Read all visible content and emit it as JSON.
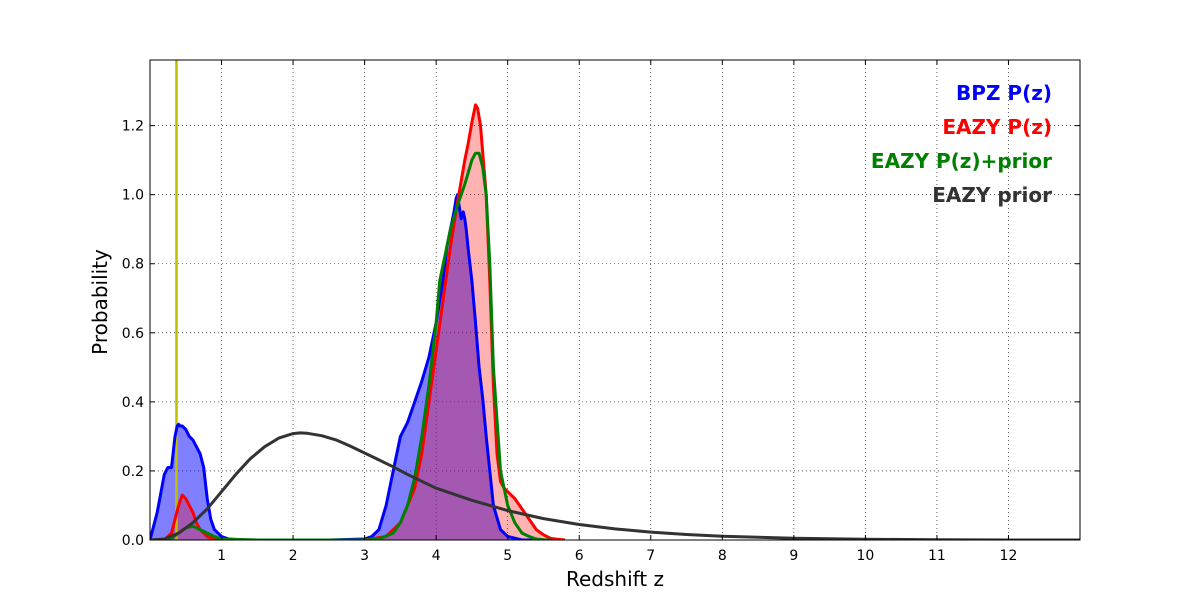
{
  "chart_data": {
    "type": "area",
    "title": "",
    "xlabel": "Redshift z",
    "ylabel": "Probability",
    "xlim": [
      0,
      13
    ],
    "ylim": [
      0,
      1.39
    ],
    "xticks": [
      1,
      2,
      3,
      4,
      5,
      6,
      7,
      8,
      9,
      10,
      11,
      12
    ],
    "yticks": [
      0.0,
      0.2,
      0.4,
      0.6,
      0.8,
      1.0,
      1.2
    ],
    "ytick_labels": [
      "0.0",
      "0.2",
      "0.4",
      "0.6",
      "0.8",
      "1.0",
      "1.2"
    ],
    "grid": true,
    "legend_position": "top-right",
    "vline": {
      "x": 0.37,
      "color": "#bfbf00"
    },
    "series": [
      {
        "name": "BPZ P(z)",
        "color": "#0000ff",
        "fill": "#0000ff",
        "fill_opacity": 0.5,
        "x": [
          0.0,
          0.1,
          0.2,
          0.25,
          0.3,
          0.35,
          0.38,
          0.4,
          0.42,
          0.45,
          0.5,
          0.55,
          0.6,
          0.65,
          0.7,
          0.75,
          0.8,
          0.85,
          0.9,
          1.0,
          1.1,
          1.3,
          1.5,
          2.0,
          2.5,
          3.0,
          3.1,
          3.2,
          3.3,
          3.4,
          3.5,
          3.6,
          3.7,
          3.8,
          3.9,
          4.0,
          4.1,
          4.15,
          4.2,
          4.25,
          4.28,
          4.3,
          4.32,
          4.35,
          4.38,
          4.4,
          4.42,
          4.45,
          4.5,
          4.55,
          4.6,
          4.65,
          4.7,
          4.75,
          4.8,
          4.9,
          5.0,
          5.2,
          5.5
        ],
        "values": [
          0.0,
          0.08,
          0.19,
          0.21,
          0.21,
          0.3,
          0.33,
          0.335,
          0.33,
          0.33,
          0.32,
          0.3,
          0.29,
          0.27,
          0.25,
          0.21,
          0.12,
          0.06,
          0.03,
          0.01,
          0.003,
          0.0,
          0.0,
          0.0,
          0.0,
          0.003,
          0.01,
          0.03,
          0.1,
          0.2,
          0.3,
          0.34,
          0.4,
          0.46,
          0.53,
          0.63,
          0.76,
          0.85,
          0.9,
          0.95,
          0.99,
          1.0,
          0.97,
          0.93,
          0.95,
          0.93,
          0.9,
          0.84,
          0.75,
          0.63,
          0.5,
          0.41,
          0.3,
          0.2,
          0.1,
          0.03,
          0.01,
          0.0,
          0.0
        ]
      },
      {
        "name": "EAZY P(z)",
        "color": "#ff0000",
        "fill": "#ff0000",
        "fill_opacity": 0.3,
        "x": [
          0.0,
          0.2,
          0.3,
          0.35,
          0.4,
          0.45,
          0.5,
          0.55,
          0.6,
          0.65,
          0.7,
          0.8,
          0.9,
          1.0,
          1.5,
          2.0,
          2.5,
          3.0,
          3.3,
          3.5,
          3.7,
          3.8,
          3.9,
          4.0,
          4.1,
          4.2,
          4.3,
          4.4,
          4.45,
          4.5,
          4.55,
          4.58,
          4.62,
          4.7,
          4.75,
          4.8,
          4.85,
          4.9,
          4.95,
          5.0,
          5.1,
          5.2,
          5.3,
          5.4,
          5.5,
          5.6,
          5.7,
          5.8
        ],
        "values": [
          0.0,
          0.0,
          0.02,
          0.06,
          0.1,
          0.13,
          0.12,
          0.1,
          0.08,
          0.05,
          0.03,
          0.01,
          0.002,
          0.0,
          0.0,
          0.0,
          0.0,
          0.0,
          0.01,
          0.05,
          0.15,
          0.25,
          0.4,
          0.55,
          0.7,
          0.85,
          0.98,
          1.1,
          1.15,
          1.21,
          1.26,
          1.25,
          1.2,
          1.0,
          0.75,
          0.45,
          0.25,
          0.17,
          0.15,
          0.14,
          0.12,
          0.09,
          0.06,
          0.03,
          0.015,
          0.005,
          0.002,
          0.0
        ]
      },
      {
        "name": "EAZY P(z)+prior",
        "color": "#008000",
        "fill": "none",
        "fill_opacity": 0,
        "x": [
          0.0,
          0.2,
          0.3,
          0.4,
          0.5,
          0.6,
          0.7,
          0.8,
          0.9,
          1.0,
          1.5,
          2.0,
          2.5,
          3.0,
          3.2,
          3.4,
          3.5,
          3.6,
          3.7,
          3.8,
          3.9,
          4.0,
          4.05,
          4.1,
          4.2,
          4.3,
          4.4,
          4.5,
          4.55,
          4.6,
          4.65,
          4.7,
          4.75,
          4.8,
          4.9,
          5.0,
          5.1,
          5.2,
          5.3,
          5.4,
          5.5,
          5.6
        ],
        "values": [
          0.0,
          0.0,
          0.005,
          0.02,
          0.035,
          0.04,
          0.03,
          0.02,
          0.01,
          0.003,
          0.0,
          0.0,
          0.0,
          0.0,
          0.003,
          0.02,
          0.05,
          0.1,
          0.18,
          0.3,
          0.45,
          0.63,
          0.75,
          0.8,
          0.9,
          0.97,
          1.03,
          1.1,
          1.12,
          1.12,
          1.08,
          1.0,
          0.8,
          0.5,
          0.2,
          0.1,
          0.05,
          0.02,
          0.01,
          0.003,
          0.001,
          0.0
        ]
      },
      {
        "name": "EAZY prior",
        "color": "#333333",
        "fill": "none",
        "fill_opacity": 0,
        "x": [
          0.0,
          0.2,
          0.4,
          0.6,
          0.8,
          1.0,
          1.2,
          1.4,
          1.6,
          1.8,
          2.0,
          2.1,
          2.2,
          2.4,
          2.6,
          2.8,
          3.0,
          3.2,
          3.4,
          3.6,
          3.8,
          4.0,
          4.5,
          5.0,
          5.5,
          6.0,
          6.5,
          7.0,
          7.5,
          8.0,
          9.0,
          10.0,
          11.0,
          12.0,
          13.0
        ],
        "values": [
          0.0,
          0.003,
          0.02,
          0.05,
          0.09,
          0.14,
          0.19,
          0.235,
          0.27,
          0.295,
          0.308,
          0.31,
          0.309,
          0.302,
          0.29,
          0.272,
          0.252,
          0.232,
          0.212,
          0.19,
          0.17,
          0.15,
          0.115,
          0.085,
          0.062,
          0.045,
          0.032,
          0.023,
          0.016,
          0.011,
          0.005,
          0.002,
          0.001,
          0.0,
          0.0
        ]
      }
    ]
  }
}
